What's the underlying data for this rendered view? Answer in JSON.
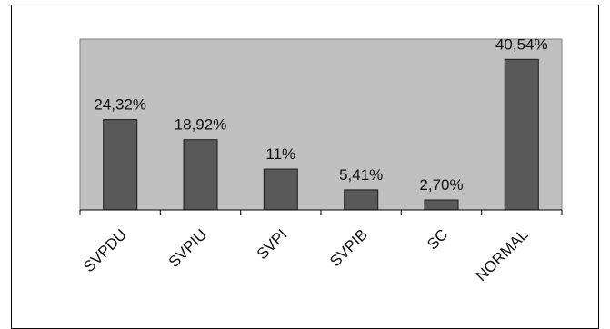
{
  "chart_data": {
    "type": "bar",
    "title": "",
    "xlabel": "",
    "ylabel": "",
    "categories": [
      "SVPDU",
      "SVPIU",
      "SVPI",
      "SVPIB",
      "SC",
      "NORMAL"
    ],
    "values": [
      24.32,
      18.92,
      11,
      5.41,
      2.7,
      40.54
    ],
    "value_labels": [
      "24,32%",
      "18,92%",
      "11%",
      "5,41%",
      "2,70%",
      "40,54%"
    ],
    "ylim": [
      0,
      46
    ],
    "grid": false,
    "legend": "none",
    "colors": {
      "plot_background": "#c0c0c0",
      "bar_fill": "#595959",
      "bar_stroke": "#1a1a1a"
    }
  }
}
